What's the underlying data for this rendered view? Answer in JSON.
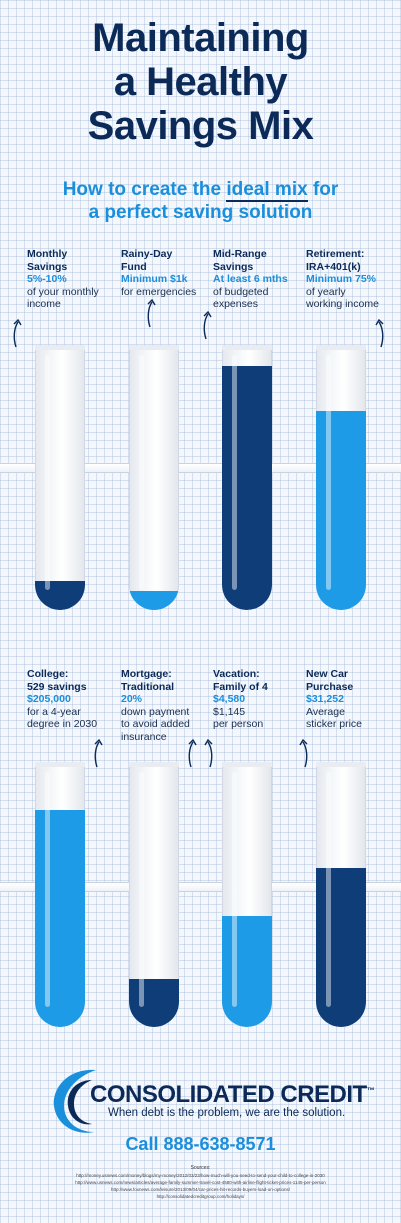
{
  "title": {
    "line1": "Maintaining",
    "line2": "a Healthy",
    "line3": "Savings Mix"
  },
  "subtitle": {
    "pre": "How to create the ",
    "highlight": "ideal mix",
    "post": " for",
    "line2": "a perfect saving solution"
  },
  "colors": {
    "navy": "#0c2a57",
    "blue": "#1a8fdc",
    "dark_fill": "#0f3d78",
    "light_fill": "#1e9be6"
  },
  "items": [
    {
      "title_l1": "Monthly",
      "title_l2": "Savings",
      "highlight": "5%-10%",
      "desc_l1": "of your monthly",
      "desc_l2": "income",
      "fill": 0.11,
      "color": "#0f3d78"
    },
    {
      "title_l1": "Rainy-Day",
      "title_l2": "Fund",
      "highlight": "Minimum $1k",
      "desc_l1": "for emergencies",
      "desc_l2": "",
      "fill": 0.07,
      "color": "#1e9be6"
    },
    {
      "title_l1": "Mid-Range",
      "title_l2": "Savings",
      "highlight": "At least 6 mths",
      "desc_l1": "of budgeted",
      "desc_l2": "expenses",
      "fill": 0.92,
      "color": "#0f3d78"
    },
    {
      "title_l1": "Retirement:",
      "title_l2": "IRA+401(k)",
      "highlight": "Minimum 75%",
      "desc_l1": "of yearly",
      "desc_l2": "working income",
      "fill": 0.75,
      "color": "#1e9be6"
    },
    {
      "title_l1": "College:",
      "title_l2": "529 savings",
      "highlight": "$205,000",
      "desc_l1": "for a 4-year",
      "desc_l2": "degree in 2030",
      "fill": 0.82,
      "color": "#1e9be6"
    },
    {
      "title_l1": "Mortgage:",
      "title_l2": "Traditional",
      "highlight": "20%",
      "desc_l1": "down payment",
      "desc_l2": "to avoid added",
      "desc_l3": "insurance",
      "fill": 0.18,
      "color": "#0f3d78"
    },
    {
      "title_l1": "Vacation:",
      "title_l2": "Family of 4",
      "highlight": "$4,580",
      "desc_l1": "$1,145",
      "desc_l2": "per person",
      "fill": 0.42,
      "color": "#1e9be6"
    },
    {
      "title_l1": "New Car",
      "title_l2": "Purchase",
      "highlight": "$31,252",
      "desc_l1": "Average",
      "desc_l2": "sticker price",
      "fill": 0.6,
      "color": "#0f3d78"
    }
  ],
  "footer": {
    "logo": "CONSOLIDATED CREDIT",
    "tm": "™",
    "tagline": "When debt is the problem,  we are the solution.",
    "phone": "Call 888-638-8571",
    "sources_title": "Sources:",
    "sources": [
      "http://money.usnews.com/money/blogs/my-money/2012/03/23/how-much-will-you-need-to-send-your-child-to-college-in-2030",
      "http://www.usnews.com/news/articles/average-family-summer-travel-cost-4580-with-airline-flight-ticket-prices-1145-per-person",
      "http://www.foxnews.com/leisure/2013/09/04/car-prices-hit-records-buyers-load-on-options/",
      "http://consolidatedcreditgroup.com/holidays/"
    ]
  }
}
